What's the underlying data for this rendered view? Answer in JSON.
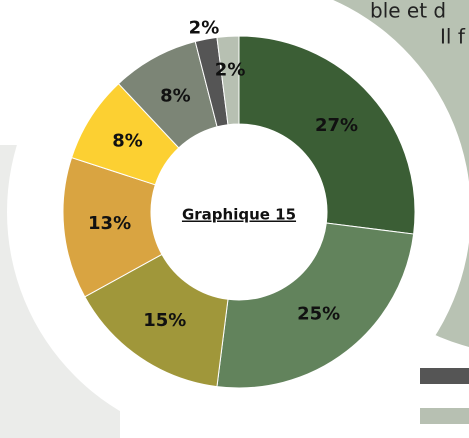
{
  "chart_data": {
    "type": "donut",
    "title": "Graphique 15",
    "background_text": [
      "ble et d",
      "Il f"
    ],
    "categories": [
      null,
      null,
      null,
      null,
      null,
      null,
      null,
      null
    ],
    "values": [
      27,
      25,
      15,
      13,
      8,
      8,
      2,
      2
    ],
    "value_labels": [
      "27%",
      "25%",
      "15%",
      "13%",
      "8%",
      "8%",
      "2%",
      "2%"
    ],
    "colors": [
      "#3b5e35",
      "#62835c",
      "#a0973a",
      "#d9a441",
      "#fcd032",
      "#7c8576",
      "#555555",
      "#b7c0b2"
    ]
  }
}
